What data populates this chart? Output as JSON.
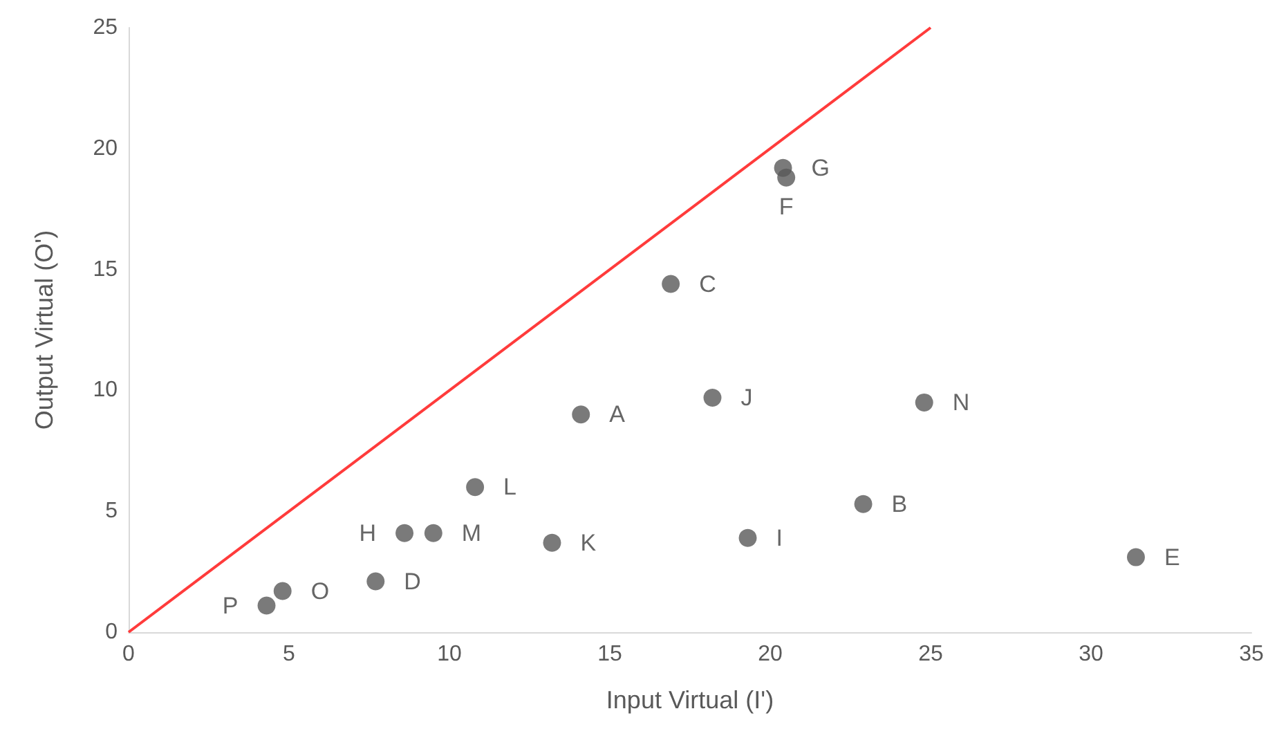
{
  "chart_data": {
    "type": "scatter",
    "xlabel": "Input Virtual (I')",
    "ylabel": "Output Virtual (O')",
    "xlim": [
      0,
      35
    ],
    "xticks": [
      0,
      5,
      10,
      15,
      20,
      25,
      30,
      35
    ],
    "ylim": [
      0,
      25
    ],
    "yticks": [
      0,
      5,
      10,
      15,
      20,
      25
    ],
    "grid": false,
    "marker": "circle",
    "series": [
      {
        "color": "#595959",
        "x": [
          14.1,
          22.9,
          16.9,
          7.7,
          31.4,
          20.5,
          20.4,
          8.6,
          19.3,
          18.2,
          13.2,
          10.8,
          9.5,
          24.8,
          4.8,
          4.3
        ],
        "values": [
          9.0,
          5.3,
          14.4,
          2.1,
          3.1,
          18.8,
          19.2,
          4.1,
          3.9,
          9.7,
          3.7,
          6.0,
          4.1,
          9.5,
          1.7,
          1.1
        ],
        "value_labels": [
          "A",
          "B",
          "C",
          "D",
          "E",
          "F",
          "G",
          "H",
          "I",
          "J",
          "K",
          "L",
          "M",
          "N",
          "O",
          "P"
        ]
      },
      {
        "type": "line",
        "color": "#ff3b3b",
        "x": [
          0,
          25
        ],
        "values": [
          0,
          25
        ],
        "marker": "none"
      }
    ]
  }
}
